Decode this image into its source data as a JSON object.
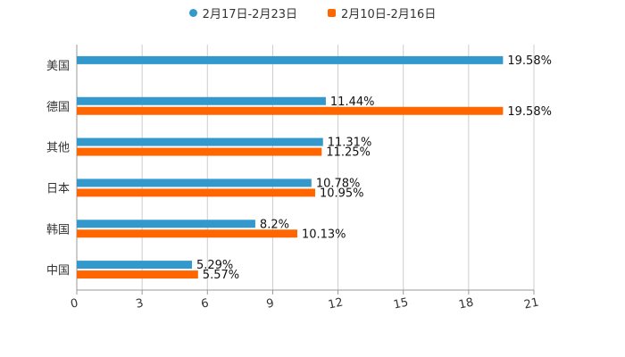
{
  "chart_data": {
    "type": "bar",
    "orientation": "horizontal",
    "categories": [
      "美国",
      "德国",
      "其他",
      "日本",
      "韩国",
      "中国"
    ],
    "series": [
      {
        "name": "2月17日-2月23日",
        "color": "#3399cc",
        "values": [
          19.58,
          11.44,
          11.31,
          10.78,
          8.2,
          5.29
        ],
        "labels": [
          "19.58%",
          "11.44%",
          "11.31%",
          "10.78%",
          "8.2%",
          "5.29%"
        ]
      },
      {
        "name": "2月10日-2月16日",
        "color": "#ff6600",
        "values": [
          null,
          19.58,
          11.25,
          10.95,
          10.13,
          5.57
        ],
        "labels": [
          "",
          "19.58%",
          "11.25%",
          "10.95%",
          "10.13%",
          "5.57%"
        ]
      }
    ],
    "xlim": [
      0,
      21
    ],
    "xticks": [
      "0",
      "3",
      "6",
      "9",
      "12",
      "15",
      "18",
      "21"
    ],
    "grid": true,
    "legend": "top-center"
  }
}
